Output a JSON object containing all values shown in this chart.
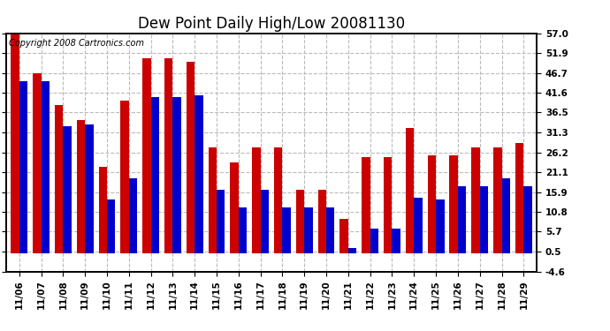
{
  "title": "Dew Point Daily High/Low 20081130",
  "copyright": "Copyright 2008 Cartronics.com",
  "dates": [
    "11/06",
    "11/07",
    "11/08",
    "11/09",
    "11/10",
    "11/11",
    "11/12",
    "11/13",
    "11/14",
    "11/15",
    "11/16",
    "11/17",
    "11/18",
    "11/19",
    "11/20",
    "11/21",
    "11/22",
    "11/23",
    "11/24",
    "11/25",
    "11/26",
    "11/27",
    "11/28",
    "11/29"
  ],
  "highs": [
    57.0,
    46.7,
    38.5,
    34.5,
    22.5,
    39.5,
    50.5,
    50.5,
    49.5,
    27.5,
    23.5,
    27.5,
    27.5,
    16.5,
    16.5,
    9.0,
    25.0,
    25.0,
    32.5,
    25.5,
    25.5,
    27.5,
    27.5,
    28.5
  ],
  "lows": [
    44.5,
    44.5,
    33.0,
    33.5,
    14.0,
    19.5,
    40.5,
    40.5,
    41.0,
    16.5,
    12.0,
    16.5,
    12.0,
    12.0,
    12.0,
    1.5,
    6.5,
    6.5,
    14.5,
    14.0,
    17.5,
    17.5,
    19.5,
    17.5
  ],
  "high_color": "#cc0000",
  "low_color": "#0000cc",
  "bg_color": "#ffffff",
  "plot_bg_color": "#ffffff",
  "grid_color": "#bbbbbb",
  "yticks": [
    57.0,
    51.9,
    46.7,
    41.6,
    36.5,
    31.3,
    26.2,
    21.1,
    15.9,
    10.8,
    5.7,
    0.5,
    -4.6
  ],
  "ymin": -4.6,
  "ymax": 57.0,
  "title_fontsize": 12,
  "tick_fontsize": 7.5,
  "copyright_fontsize": 7
}
